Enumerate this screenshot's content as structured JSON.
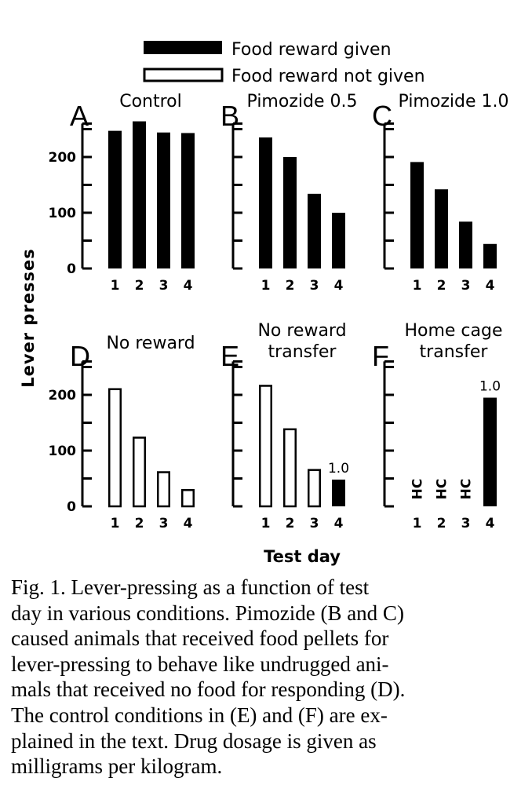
{
  "legend": {
    "filled_label": "Food reward given",
    "open_label": "Food reward not given"
  },
  "ylabel": "Lever presses",
  "xlabel": "Test day",
  "caption": "Fig. 1. Lever-pressing as a function of test\nday in various conditions. Pimozide (B and C)\ncaused animals that received food pellets for\nlever-pressing to behave like undrugged ani-\nmals that received no food for responding (D).\nThe control conditions in (E) and (F) are ex-\nplained in the text. Drug dosage is given as\nmilligrams per kilogram.",
  "colors": {
    "ink": "#000000",
    "background": "#ffffff"
  },
  "chart_data": [
    {
      "panel": "A",
      "title_lines": [
        "Control"
      ],
      "type": "bar",
      "categories": [
        "1",
        "2",
        "3",
        "4"
      ],
      "values": [
        247,
        264,
        244,
        243
      ],
      "fill": [
        "filled",
        "filled",
        "filled",
        "filled"
      ],
      "ylim": [
        0,
        260
      ],
      "yticks": [
        0,
        100,
        200
      ],
      "ytick_labels": [
        "0",
        "100",
        "200"
      ]
    },
    {
      "panel": "B",
      "title_lines": [
        "Pimozide 0.5"
      ],
      "type": "bar",
      "categories": [
        "1",
        "2",
        "3",
        "4"
      ],
      "values": [
        235,
        200,
        134,
        100
      ],
      "fill": [
        "filled",
        "filled",
        "filled",
        "filled"
      ],
      "ylim": [
        0,
        260
      ],
      "yticks": [
        0,
        100,
        200
      ],
      "ytick_labels": []
    },
    {
      "panel": "C",
      "title_lines": [
        "Pimozide 1.0"
      ],
      "type": "bar",
      "categories": [
        "1",
        "2",
        "3",
        "4"
      ],
      "values": [
        191,
        142,
        84,
        44
      ],
      "fill": [
        "filled",
        "filled",
        "filled",
        "filled"
      ],
      "ylim": [
        0,
        260
      ],
      "yticks": [
        0,
        100,
        200
      ],
      "ytick_labels": []
    },
    {
      "panel": "D",
      "title_lines": [
        "No reward"
      ],
      "type": "bar",
      "categories": [
        "1",
        "2",
        "3",
        "4"
      ],
      "values": [
        212,
        125,
        63,
        31
      ],
      "fill": [
        "open",
        "open",
        "open",
        "open"
      ],
      "ylim": [
        0,
        260
      ],
      "yticks": [
        0,
        100,
        200
      ],
      "ytick_labels": [
        "0",
        "100",
        "200"
      ]
    },
    {
      "panel": "E",
      "title_lines": [
        "No reward",
        "transfer"
      ],
      "type": "bar",
      "categories": [
        "1",
        "2",
        "3",
        "4"
      ],
      "values": [
        218,
        140,
        67,
        48
      ],
      "fill": [
        "open",
        "open",
        "open",
        "filled"
      ],
      "ylim": [
        0,
        260
      ],
      "yticks": [
        0,
        100,
        200
      ],
      "ytick_labels": [],
      "annotations": [
        {
          "category": "4",
          "text": "1.0"
        }
      ]
    },
    {
      "panel": "F",
      "title_lines": [
        "Home cage",
        "transfer"
      ],
      "type": "bar",
      "categories": [
        "1",
        "2",
        "3",
        "4"
      ],
      "values": [
        null,
        null,
        null,
        195
      ],
      "fill": [
        null,
        null,
        null,
        "filled"
      ],
      "ylim": [
        0,
        260
      ],
      "yticks": [
        0,
        100,
        200
      ],
      "ytick_labels": [],
      "category_markers": [
        "HC",
        "HC",
        "HC",
        null
      ],
      "annotations": [
        {
          "category": "4",
          "text": "1.0"
        }
      ]
    }
  ]
}
